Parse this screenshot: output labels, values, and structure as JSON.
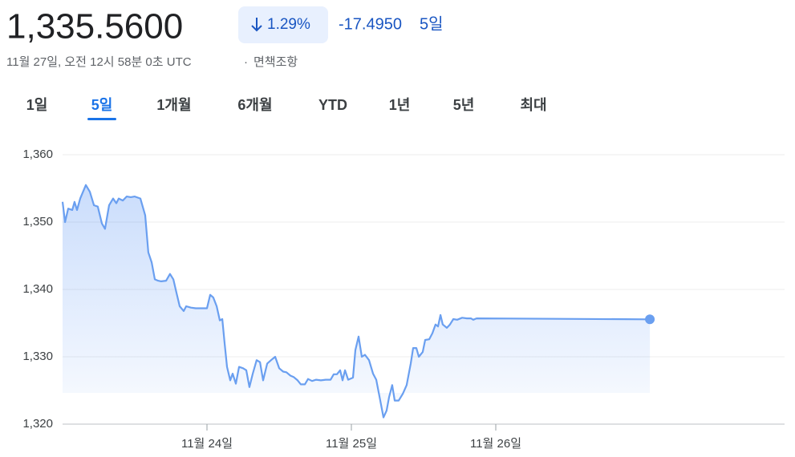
{
  "header": {
    "price": "1,335.5600",
    "change_pct": "1.29%",
    "change": "-17.4950",
    "period": "5일",
    "timestamp": "11월 27일, 오전 12시 58분 0초 UTC",
    "disclaimer": "면책조항"
  },
  "tabs": [
    "1일",
    "5일",
    "1개월",
    "6개월",
    "YTD",
    "1년",
    "5년",
    "최대"
  ],
  "active_tab": 1,
  "chart_data": {
    "type": "line",
    "color": "#6a9ff0",
    "grid": true,
    "xlim": [
      23,
      28
    ],
    "xticks": [
      {
        "value": 24,
        "label": "11월 24일"
      },
      {
        "value": 25,
        "label": "11월 25일"
      },
      {
        "value": 26,
        "label": "11월 26일"
      }
    ],
    "ylim": [
      1320,
      1360
    ],
    "yticks": [
      {
        "value": 1320,
        "label": "1,320"
      },
      {
        "value": 1330,
        "label": "1,330"
      },
      {
        "value": 1340,
        "label": "1,340"
      },
      {
        "value": 1350,
        "label": "1,350"
      },
      {
        "value": 1360,
        "label": "1,360"
      }
    ],
    "x": [
      23.0,
      23.017,
      23.039,
      23.067,
      23.083,
      23.1,
      23.122,
      23.161,
      23.189,
      23.217,
      23.244,
      23.272,
      23.294,
      23.322,
      23.35,
      23.372,
      23.389,
      23.417,
      23.444,
      23.472,
      23.5,
      23.539,
      23.572,
      23.594,
      23.617,
      23.639,
      23.661,
      23.683,
      23.717,
      23.744,
      23.767,
      23.789,
      23.811,
      23.839,
      23.856,
      23.889,
      23.922,
      23.956,
      24.0,
      24.022,
      24.044,
      24.067,
      24.089,
      24.106,
      24.122,
      24.139,
      24.161,
      24.178,
      24.2,
      24.222,
      24.25,
      24.272,
      24.294,
      24.317,
      24.344,
      24.367,
      24.389,
      24.417,
      24.444,
      24.472,
      24.5,
      24.528,
      24.55,
      24.578,
      24.6,
      24.628,
      24.65,
      24.678,
      24.7,
      24.728,
      24.756,
      24.789,
      24.822,
      24.856,
      24.878,
      24.9,
      24.922,
      24.939,
      24.956,
      24.978,
      25.011,
      25.028,
      25.05,
      25.072,
      25.094,
      25.122,
      25.15,
      25.172,
      25.2,
      25.222,
      25.244,
      25.261,
      25.283,
      25.3,
      25.328,
      25.356,
      25.383,
      25.411,
      25.428,
      25.45,
      25.467,
      25.494,
      25.511,
      25.539,
      25.561,
      25.583,
      25.6,
      25.617,
      25.633,
      25.661,
      25.683,
      25.706,
      25.733,
      25.767,
      25.8,
      25.828,
      25.844,
      25.867,
      27.067
    ],
    "values": [
      1353,
      1350,
      1352,
      1351.8,
      1353,
      1351.8,
      1353.5,
      1355.5,
      1354.5,
      1352.5,
      1352.3,
      1349.8,
      1349,
      1352.5,
      1353.5,
      1352.8,
      1353.5,
      1353.2,
      1353.8,
      1353.7,
      1353.8,
      1353.5,
      1351,
      1345.5,
      1344,
      1341.5,
      1341.3,
      1341.2,
      1341.3,
      1342.3,
      1341.5,
      1339.5,
      1337.5,
      1336.8,
      1337.5,
      1337.3,
      1337.2,
      1337.2,
      1337.2,
      1339.2,
      1338.8,
      1337.5,
      1335.4,
      1335.6,
      1332,
      1328.5,
      1326.5,
      1327.5,
      1326,
      1328.5,
      1328.3,
      1328,
      1325.5,
      1327.5,
      1329.5,
      1329.2,
      1326.5,
      1329,
      1329.5,
      1330,
      1328.3,
      1327.8,
      1327.7,
      1327.2,
      1327,
      1326.5,
      1325.9,
      1325.9,
      1326.7,
      1326.4,
      1326.6,
      1326.5,
      1326.6,
      1326.6,
      1327.4,
      1327.4,
      1328,
      1326.5,
      1328,
      1326.6,
      1326.9,
      1331,
      1333,
      1330,
      1330.3,
      1329.5,
      1327.5,
      1326.6,
      1323.5,
      1321,
      1322,
      1324,
      1325.8,
      1323.5,
      1323.5,
      1324.5,
      1325.8,
      1329,
      1331.3,
      1331.3,
      1330,
      1330.7,
      1332.5,
      1332.6,
      1333.5,
      1334.8,
      1334.5,
      1336.2,
      1334.8,
      1334.3,
      1334.8,
      1335.6,
      1335.5,
      1335.8,
      1335.7,
      1335.7,
      1335.5,
      1335.7,
      1335.56
    ]
  }
}
